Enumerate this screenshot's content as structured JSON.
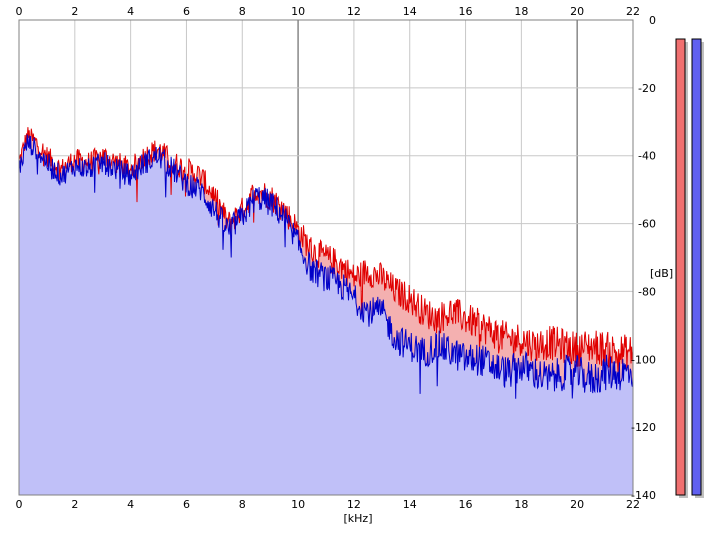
{
  "chart_data": {
    "type": "area",
    "xlabel": "[kHz]",
    "ylabel": "[dB]",
    "xlim": [
      0,
      22
    ],
    "ylim": [
      -140,
      0
    ],
    "x_ticks": [
      "0",
      "2",
      "4",
      "6",
      "8",
      "10",
      "12",
      "14",
      "16",
      "18",
      "20",
      "22"
    ],
    "y_ticks": [
      "0",
      "-20",
      "-40",
      "-60",
      "-80",
      "-100",
      "-120",
      "-140"
    ],
    "grid": true,
    "series": [
      {
        "color": "#e00000",
        "fill": "#f4b0b0",
        "x": [
          0,
          0.3,
          0.6,
          1,
          1.5,
          2,
          2.5,
          3,
          3.5,
          4,
          4.5,
          5,
          5.5,
          6,
          6.5,
          7,
          7.5,
          8,
          8.5,
          9,
          9.5,
          10,
          10.5,
          11,
          11.5,
          12,
          12.5,
          13,
          13.5,
          14,
          14.5,
          15,
          15.5,
          16,
          16.5,
          17,
          17.5,
          18,
          18.5,
          19,
          19.5,
          20,
          20.5,
          21,
          21.5,
          22
        ],
        "values": [
          -42,
          -34,
          -36,
          -40,
          -44,
          -41,
          -42,
          -40,
          -42,
          -44,
          -40,
          -38,
          -42,
          -44,
          -46,
          -52,
          -60,
          -56,
          -50,
          -52,
          -56,
          -62,
          -68,
          -70,
          -72,
          -76,
          -74,
          -76,
          -80,
          -82,
          -86,
          -88,
          -86,
          -88,
          -90,
          -92,
          -94,
          -94,
          -96,
          -95,
          -96,
          -97,
          -96,
          -97,
          -98,
          -98
        ]
      },
      {
        "color": "#0000c8",
        "fill": "#c0c0f8",
        "x": [
          0,
          0.3,
          0.6,
          1,
          1.5,
          2,
          2.5,
          3,
          3.5,
          4,
          4.5,
          5,
          5.5,
          6,
          6.5,
          7,
          7.5,
          8,
          8.5,
          9,
          9.5,
          10,
          10.5,
          11,
          11.5,
          12,
          12.5,
          13,
          13.5,
          14,
          14.5,
          15,
          15.5,
          16,
          16.5,
          17,
          17.5,
          18,
          18.5,
          19,
          19.5,
          20,
          20.5,
          21,
          21.5,
          22
        ],
        "values": [
          -44,
          -36,
          -38,
          -42,
          -46,
          -43,
          -44,
          -42,
          -44,
          -46,
          -42,
          -40,
          -44,
          -48,
          -50,
          -56,
          -62,
          -58,
          -52,
          -54,
          -58,
          -66,
          -74,
          -76,
          -78,
          -82,
          -86,
          -86,
          -94,
          -96,
          -98,
          -96,
          -98,
          -100,
          -100,
          -102,
          -104,
          -102,
          -104,
          -106,
          -104,
          -104,
          -106,
          -104,
          -104,
          -104
        ]
      }
    ]
  },
  "level_meters": [
    {
      "color": "#f07070",
      "level": 1
    },
    {
      "color": "#6060f0",
      "level": 1
    }
  ]
}
